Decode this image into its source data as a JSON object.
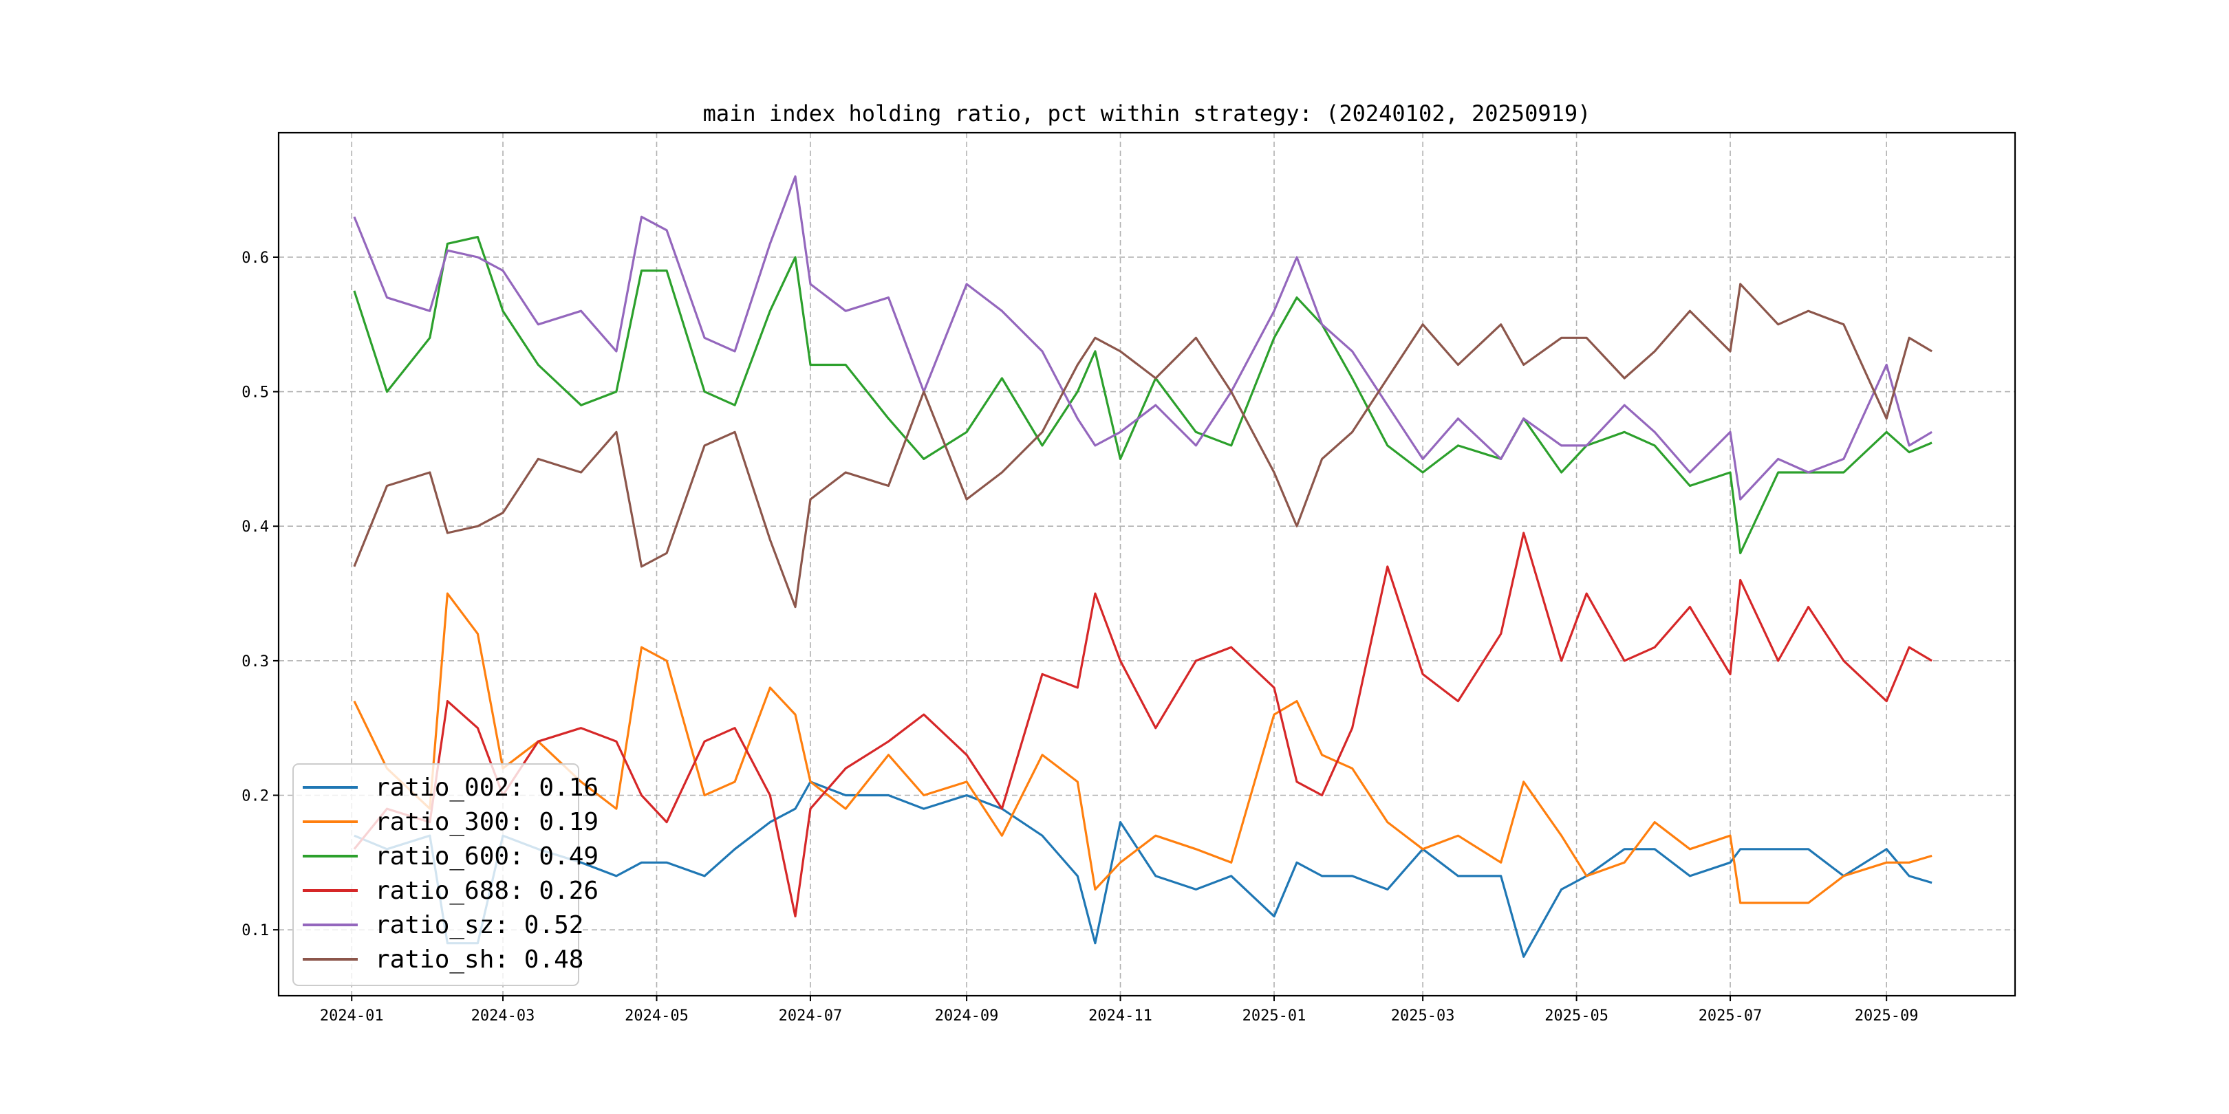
{
  "chart_data": {
    "type": "line",
    "title": "main index holding ratio, pct within strategy: (20240102, 20250919)",
    "xlabel": "",
    "ylabel": "",
    "xlim": [
      "2023-12-03",
      "2025-10-22"
    ],
    "ylim": [
      0.051,
      0.6925
    ],
    "grid": true,
    "legend_position": "lower-left",
    "x_ticks": [
      "2024-01",
      "2024-03",
      "2024-05",
      "2024-07",
      "2024-09",
      "2024-11",
      "2025-01",
      "2025-03",
      "2025-05",
      "2025-07",
      "2025-09"
    ],
    "y_ticks": [
      0.1,
      0.2,
      0.3,
      0.4,
      0.5,
      0.6
    ],
    "y_tick_labels": [
      "0.1",
      "0.2",
      "0.3",
      "0.4",
      "0.5",
      "0.6"
    ],
    "x": [
      "2024-01-02",
      "2024-01-15",
      "2024-02-01",
      "2024-02-08",
      "2024-02-20",
      "2024-03-01",
      "2024-03-15",
      "2024-04-01",
      "2024-04-15",
      "2024-04-25",
      "2024-05-05",
      "2024-05-20",
      "2024-06-01",
      "2024-06-15",
      "2024-06-25",
      "2024-07-01",
      "2024-07-15",
      "2024-08-01",
      "2024-08-15",
      "2024-09-01",
      "2024-09-15",
      "2024-10-01",
      "2024-10-15",
      "2024-10-22",
      "2024-11-01",
      "2024-11-15",
      "2024-12-01",
      "2024-12-15",
      "2025-01-01",
      "2025-01-10",
      "2025-01-20",
      "2025-02-01",
      "2025-02-15",
      "2025-03-01",
      "2025-03-15",
      "2025-04-01",
      "2025-04-10",
      "2025-04-25",
      "2025-05-05",
      "2025-05-20",
      "2025-06-01",
      "2025-06-15",
      "2025-07-01",
      "2025-07-05",
      "2025-07-20",
      "2025-08-01",
      "2025-08-15",
      "2025-09-01",
      "2025-09-10",
      "2025-09-19"
    ],
    "series": [
      {
        "name": "ratio_002",
        "legend": "ratio_002: 0.16",
        "color": "#1f77b4",
        "values": [
          0.17,
          0.16,
          0.17,
          0.09,
          0.09,
          0.17,
          0.16,
          0.15,
          0.14,
          0.15,
          0.15,
          0.14,
          0.16,
          0.18,
          0.19,
          0.21,
          0.2,
          0.2,
          0.19,
          0.2,
          0.19,
          0.17,
          0.14,
          0.09,
          0.18,
          0.14,
          0.13,
          0.14,
          0.11,
          0.15,
          0.14,
          0.14,
          0.13,
          0.16,
          0.14,
          0.14,
          0.08,
          0.13,
          0.14,
          0.16,
          0.16,
          0.14,
          0.15,
          0.16,
          0.16,
          0.16,
          0.14,
          0.16,
          0.14,
          0.135
        ]
      },
      {
        "name": "ratio_300",
        "legend": "ratio_300: 0.19",
        "color": "#ff7f0e",
        "values": [
          0.27,
          0.22,
          0.19,
          0.35,
          0.32,
          0.22,
          0.24,
          0.21,
          0.19,
          0.31,
          0.3,
          0.2,
          0.21,
          0.28,
          0.26,
          0.21,
          0.19,
          0.23,
          0.2,
          0.21,
          0.17,
          0.23,
          0.21,
          0.13,
          0.15,
          0.17,
          0.16,
          0.15,
          0.26,
          0.27,
          0.23,
          0.22,
          0.18,
          0.16,
          0.17,
          0.15,
          0.21,
          0.17,
          0.14,
          0.15,
          0.18,
          0.16,
          0.17,
          0.12,
          0.12,
          0.12,
          0.14,
          0.15,
          0.15,
          0.155
        ]
      },
      {
        "name": "ratio_600",
        "legend": "ratio_600: 0.49",
        "color": "#2ca02c",
        "values": [
          0.575,
          0.5,
          0.54,
          0.61,
          0.615,
          0.56,
          0.52,
          0.49,
          0.5,
          0.59,
          0.59,
          0.5,
          0.49,
          0.56,
          0.6,
          0.52,
          0.52,
          0.48,
          0.45,
          0.47,
          0.51,
          0.46,
          0.5,
          0.53,
          0.45,
          0.51,
          0.47,
          0.46,
          0.54,
          0.57,
          0.55,
          0.51,
          0.46,
          0.44,
          0.46,
          0.45,
          0.48,
          0.44,
          0.46,
          0.47,
          0.46,
          0.43,
          0.44,
          0.38,
          0.44,
          0.44,
          0.44,
          0.47,
          0.455,
          0.462
        ]
      },
      {
        "name": "ratio_688",
        "legend": "ratio_688: 0.26",
        "color": "#d62728",
        "values": [
          0.16,
          0.19,
          0.18,
          0.27,
          0.25,
          0.2,
          0.24,
          0.25,
          0.24,
          0.2,
          0.18,
          0.24,
          0.25,
          0.2,
          0.11,
          0.19,
          0.22,
          0.24,
          0.26,
          0.23,
          0.19,
          0.29,
          0.28,
          0.35,
          0.3,
          0.25,
          0.3,
          0.31,
          0.28,
          0.21,
          0.2,
          0.25,
          0.37,
          0.29,
          0.27,
          0.32,
          0.395,
          0.3,
          0.35,
          0.3,
          0.31,
          0.34,
          0.29,
          0.36,
          0.3,
          0.34,
          0.3,
          0.27,
          0.31,
          0.3
        ]
      },
      {
        "name": "ratio_sz",
        "legend": "ratio_sz: 0.52",
        "color": "#9467bd",
        "values": [
          0.63,
          0.57,
          0.56,
          0.605,
          0.6,
          0.59,
          0.55,
          0.56,
          0.53,
          0.63,
          0.62,
          0.54,
          0.53,
          0.61,
          0.66,
          0.58,
          0.56,
          0.57,
          0.5,
          0.58,
          0.56,
          0.53,
          0.48,
          0.46,
          0.47,
          0.49,
          0.46,
          0.5,
          0.56,
          0.6,
          0.55,
          0.53,
          0.49,
          0.45,
          0.48,
          0.45,
          0.48,
          0.46,
          0.46,
          0.49,
          0.47,
          0.44,
          0.47,
          0.42,
          0.45,
          0.44,
          0.45,
          0.52,
          0.46,
          0.47
        ]
      },
      {
        "name": "ratio_sh",
        "legend": "ratio_sh: 0.48",
        "color": "#8c564b",
        "values": [
          0.37,
          0.43,
          0.44,
          0.395,
          0.4,
          0.41,
          0.45,
          0.44,
          0.47,
          0.37,
          0.38,
          0.46,
          0.47,
          0.39,
          0.34,
          0.42,
          0.44,
          0.43,
          0.5,
          0.42,
          0.44,
          0.47,
          0.52,
          0.54,
          0.53,
          0.51,
          0.54,
          0.5,
          0.44,
          0.4,
          0.45,
          0.47,
          0.51,
          0.55,
          0.52,
          0.55,
          0.52,
          0.54,
          0.54,
          0.51,
          0.53,
          0.56,
          0.53,
          0.58,
          0.55,
          0.56,
          0.55,
          0.48,
          0.54,
          0.53
        ]
      }
    ]
  }
}
